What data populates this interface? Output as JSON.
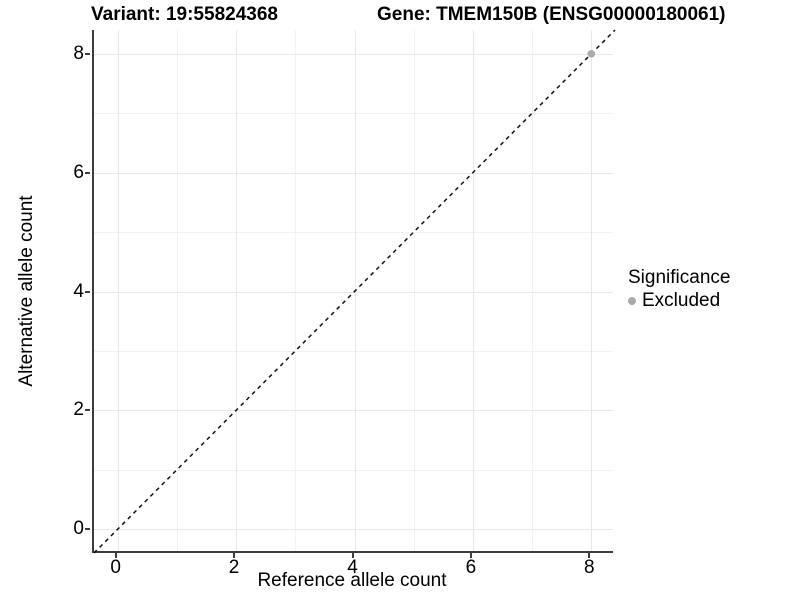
{
  "header": {
    "title_left": "Variant: 19:55824368",
    "title_right": "Gene: TMEM150B (ENSG00000180061)"
  },
  "chart_data": {
    "type": "scatter",
    "title": "Variant: 19:55824368 / Gene: TMEM150B (ENSG00000180061)",
    "xlabel": "Reference allele count",
    "ylabel": "Alternative allele count",
    "xlim": [
      -0.4,
      8.4
    ],
    "ylim": [
      -0.4,
      8.4
    ],
    "x_ticks": [
      0,
      2,
      4,
      6,
      8
    ],
    "y_ticks": [
      0,
      2,
      4,
      6,
      8
    ],
    "x_minor_gridlines": [
      1,
      3,
      5,
      7
    ],
    "y_minor_gridlines": [
      1,
      3,
      5,
      7
    ],
    "grid": "on",
    "reference_line": {
      "kind": "identity",
      "slope": 1,
      "intercept": 0,
      "style": "dashed",
      "color": "#111111"
    },
    "series": [
      {
        "name": "Excluded",
        "color": "#ababab",
        "points": [
          {
            "x": 8,
            "y": 8
          }
        ]
      }
    ],
    "legend": {
      "title": "Significance",
      "position": "right",
      "items": [
        {
          "label": "Excluded",
          "color": "#ababab"
        }
      ]
    }
  },
  "colors": {
    "background": "#ffffff",
    "axis": "#3d3d3d",
    "grid_major": "#e8e8e8",
    "grid_minor": "#f2f2f2",
    "text": "#000000",
    "point_excluded": "#ababab"
  }
}
